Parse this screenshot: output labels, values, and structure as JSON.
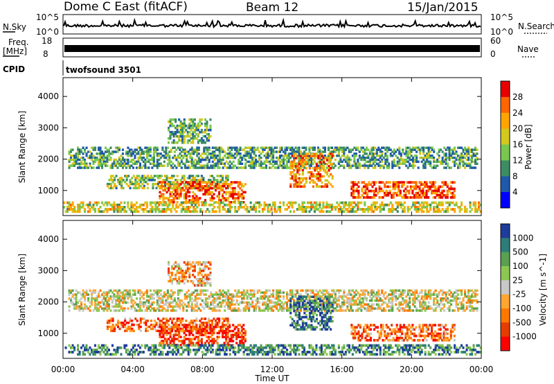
{
  "header": {
    "station": "Dome C East (fitACF)",
    "beam": "Beam 12",
    "date": "15/Jan/2015"
  },
  "strips": {
    "nsky_label": "N.Sky",
    "nsky_ticks": [
      "10^5",
      "10^0"
    ],
    "nsearch_label": "N.Search",
    "nsearch_ticks": [
      "10^5",
      "10^0"
    ],
    "freq_label": "Freq.",
    "freq_unit": "[MHz]",
    "freq_ticks": [
      "18",
      "8"
    ],
    "nave_label": "Nave",
    "nave_ticks": [
      "60",
      "0"
    ],
    "cpid_label": "CPID",
    "cpid_value": "twofsound 3501"
  },
  "chart_data": [
    {
      "type": "heatmap",
      "parameter": "Power",
      "ylabel": "Slant Range [km]",
      "ylim": [
        200,
        4600
      ],
      "yticks": [
        "4000",
        "3000",
        "2000",
        "1000"
      ],
      "xlim": [
        "00:00",
        "24:00"
      ],
      "colorbar_label": "Power [dB]",
      "colorbar_ticks": [
        "28",
        "24",
        "20",
        "16",
        "12",
        "8",
        "4"
      ],
      "colorbar_colors": [
        "#e60000",
        "#ff6600",
        "#ffa500",
        "#d2c81e",
        "#78c850",
        "#3c8c64",
        "#1e5aaa",
        "#0000ff"
      ],
      "echo_bands": [
        {
          "t0": 0.3,
          "t1": 23.8,
          "r0": 1700,
          "r1": 2400,
          "level": 0.35
        },
        {
          "t0": 2.5,
          "t1": 9.5,
          "r0": 1050,
          "r1": 1500,
          "level": 0.45
        },
        {
          "t0": 5.5,
          "t1": 10.5,
          "r0": 600,
          "r1": 1300,
          "level": 0.8
        },
        {
          "t0": 13.0,
          "t1": 15.5,
          "r0": 1100,
          "r1": 2200,
          "level": 0.75
        },
        {
          "t0": 16.5,
          "t1": 22.5,
          "r0": 750,
          "r1": 1300,
          "level": 0.85
        },
        {
          "t0": 0.0,
          "t1": 24.0,
          "r0": 300,
          "r1": 650,
          "level": 0.55
        },
        {
          "t0": 6.0,
          "t1": 8.5,
          "r0": 2500,
          "r1": 3300,
          "level": 0.4
        }
      ]
    },
    {
      "type": "heatmap",
      "parameter": "Velocity",
      "ylabel": "Slant Range [km]",
      "ylim": [
        200,
        4600
      ],
      "yticks": [
        "4000",
        "3000",
        "2000",
        "1000"
      ],
      "xlabel": "Time UT",
      "xticks": [
        "00:00",
        "04:00",
        "08:00",
        "12:00",
        "16:00",
        "20:00",
        "00:00"
      ],
      "colorbar_label": "Velocity [m s^-1]",
      "colorbar_ticks": [
        "1000",
        "500",
        "100",
        "25",
        "-25",
        "-100",
        "-500",
        "-1000"
      ],
      "colorbar_colors": [
        "#1e3c9b",
        "#2d7d78",
        "#5aa050",
        "#8cc850",
        "#c8c8c8",
        "#ffa532",
        "#ff7800",
        "#e63c00",
        "#ff0000"
      ],
      "echo_bands": [
        {
          "t0": 0.3,
          "t1": 23.8,
          "r0": 1700,
          "r1": 2400,
          "level": 0.5
        },
        {
          "t0": 2.5,
          "t1": 9.5,
          "r0": 1050,
          "r1": 1500,
          "level": 0.75
        },
        {
          "t0": 5.5,
          "t1": 10.5,
          "r0": 600,
          "r1": 1300,
          "level": 0.85
        },
        {
          "t0": 13.0,
          "t1": 15.5,
          "r0": 1100,
          "r1": 2200,
          "level": 0.15
        },
        {
          "t0": 16.5,
          "t1": 22.5,
          "r0": 750,
          "r1": 1300,
          "level": 0.75
        },
        {
          "t0": 0.0,
          "t1": 24.0,
          "r0": 300,
          "r1": 650,
          "level": 0.2
        },
        {
          "t0": 6.0,
          "t1": 8.5,
          "r0": 2500,
          "r1": 3300,
          "level": 0.65
        }
      ]
    }
  ]
}
